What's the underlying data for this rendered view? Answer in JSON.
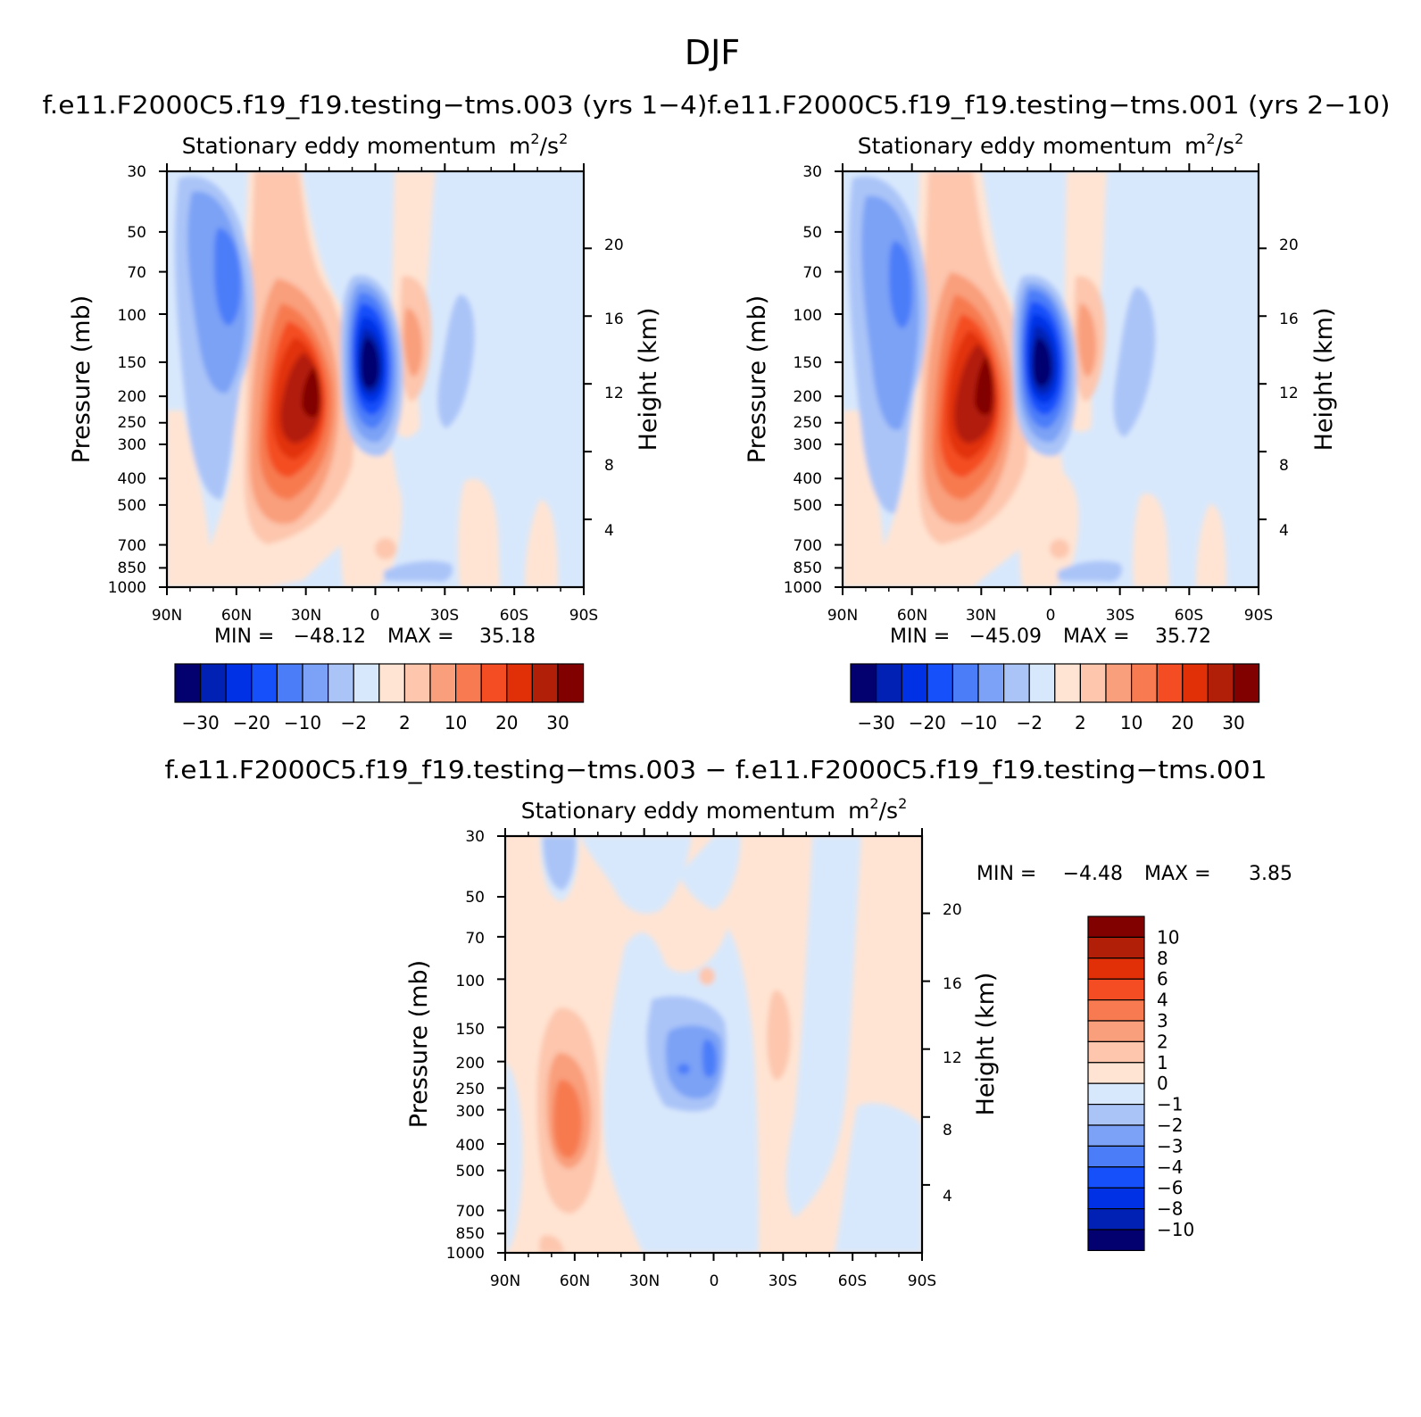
{
  "figure": {
    "title": "DJF"
  },
  "colors": {
    "scale": [
      "#03006f",
      "#0021b4",
      "#0031e5",
      "#1650fa",
      "#4c7df9",
      "#7ba2f6",
      "#aac4f8",
      "#d8e8fc",
      "#ffe4d3",
      "#fdc6ad",
      "#f99f7c",
      "#f77a50",
      "#f44d23",
      "#e13008",
      "#b21f08",
      "#810000"
    ]
  },
  "chart_data": [
    {
      "type": "heatmap",
      "case_title": "f.e11.F2000C5.f19_f19.testing−tms.003 (yrs 1−4)",
      "variable_title": "Stationary eddy momentum",
      "units_text": "m",
      "units_mid": "/s",
      "units_exp": "2",
      "xlabel": "",
      "ylabel": "Pressure (mb)",
      "y2label": "Height (km)",
      "x_ticks": [
        "90N",
        "60N",
        "30N",
        "0",
        "30S",
        "60S",
        "90S"
      ],
      "y_ticks": [
        30,
        50,
        70,
        100,
        150,
        200,
        250,
        300,
        400,
        500,
        700,
        850,
        1000
      ],
      "y2_ticks": [
        20,
        16,
        12,
        8,
        4
      ],
      "xlim": [
        "90N",
        "90S"
      ],
      "ylim": [
        1000,
        30
      ],
      "stats": {
        "min_label": "MIN =",
        "min": "−48.12",
        "max_label": "MAX =",
        "max": "35.18"
      },
      "colorbar": {
        "orientation": "horizontal",
        "labels": [
          "−30",
          "−20",
          "−10",
          "−2",
          "2",
          "10",
          "20",
          "30"
        ],
        "levels": [
          -35,
          -30,
          -25,
          -20,
          -15,
          -10,
          -5,
          -2,
          0,
          2,
          5,
          10,
          15,
          20,
          25,
          30
        ]
      },
      "features": [
        {
          "name": "subtropical positive maximum",
          "lat": 25,
          "p": 200,
          "value": 35.18
        },
        {
          "name": "equatorial negative minimum",
          "lat": 5,
          "p": 150,
          "value": -48.12
        },
        {
          "name": "high latitude negative band",
          "lat": 63,
          "p": 80,
          "value": -15
        },
        {
          "name": "southern positive lobe",
          "lat": -17,
          "p": 130,
          "value": 4
        }
      ]
    },
    {
      "type": "heatmap",
      "case_title": "f.e11.F2000C5.f19_f19.testing−tms.001 (yrs 2−10)",
      "variable_title": "Stationary eddy momentum",
      "units_text": "m",
      "units_mid": "/s",
      "units_exp": "2",
      "xlabel": "",
      "ylabel": "Pressure (mb)",
      "y2label": "Height (km)",
      "x_ticks": [
        "90N",
        "60N",
        "30N",
        "0",
        "30S",
        "60S",
        "90S"
      ],
      "y_ticks": [
        30,
        50,
        70,
        100,
        150,
        200,
        250,
        300,
        400,
        500,
        700,
        850,
        1000
      ],
      "y2_ticks": [
        20,
        16,
        12,
        8,
        4
      ],
      "xlim": [
        "90N",
        "90S"
      ],
      "ylim": [
        1000,
        30
      ],
      "stats": {
        "min_label": "MIN =",
        "min": "−45.09",
        "max_label": "MAX =",
        "max": "35.72"
      },
      "colorbar": {
        "orientation": "horizontal",
        "labels": [
          "−30",
          "−20",
          "−10",
          "−2",
          "2",
          "10",
          "20",
          "30"
        ],
        "levels": [
          -35,
          -30,
          -25,
          -20,
          -15,
          -10,
          -5,
          -2,
          0,
          2,
          5,
          10,
          15,
          20,
          25,
          30
        ]
      },
      "features": [
        {
          "name": "subtropical positive maximum",
          "lat": 27,
          "p": 180,
          "value": 35.72
        },
        {
          "name": "equatorial negative minimum",
          "lat": 5,
          "p": 150,
          "value": -45.09
        },
        {
          "name": "high latitude negative band",
          "lat": 63,
          "p": 80,
          "value": -15
        },
        {
          "name": "southern positive lobe",
          "lat": -15,
          "p": 120,
          "value": 4
        }
      ]
    },
    {
      "type": "heatmap",
      "case_title": "f.e11.F2000C5.f19_f19.testing−tms.003 − f.e11.F2000C5.f19_f19.testing−tms.001",
      "variable_title": "Stationary eddy momentum",
      "units_text": "m",
      "units_mid": "/s",
      "units_exp": "2",
      "xlabel": "",
      "ylabel": "Pressure (mb)",
      "y2label": "Height (km)",
      "x_ticks": [
        "90N",
        "60N",
        "30N",
        "0",
        "30S",
        "60S",
        "90S"
      ],
      "y_ticks": [
        30,
        50,
        70,
        100,
        150,
        200,
        250,
        300,
        400,
        500,
        700,
        850,
        1000
      ],
      "y2_ticks": [
        20,
        16,
        12,
        8,
        4
      ],
      "xlim": [
        "90N",
        "90S"
      ],
      "ylim": [
        1000,
        30
      ],
      "stats": {
        "min_label": "MIN =",
        "min": "−4.48",
        "max_label": "MAX =",
        "max": "3.85"
      },
      "colorbar": {
        "orientation": "vertical",
        "labels": [
          "10",
          "8",
          "6",
          "4",
          "3",
          "2",
          "1",
          "0",
          "−1",
          "−2",
          "−3",
          "−4",
          "−6",
          "−8",
          "−10"
        ],
        "levels": [
          10,
          8,
          6,
          4,
          3,
          2,
          1,
          0,
          -1,
          -2,
          -3,
          -4,
          -6,
          -8,
          -10
        ]
      },
      "features": [
        {
          "name": "high latitude positive maximum",
          "lat": 62,
          "p": 300,
          "value": 3.85
        },
        {
          "name": "tropical negative minimum",
          "lat": 8,
          "p": 180,
          "value": -4.48
        }
      ]
    }
  ]
}
